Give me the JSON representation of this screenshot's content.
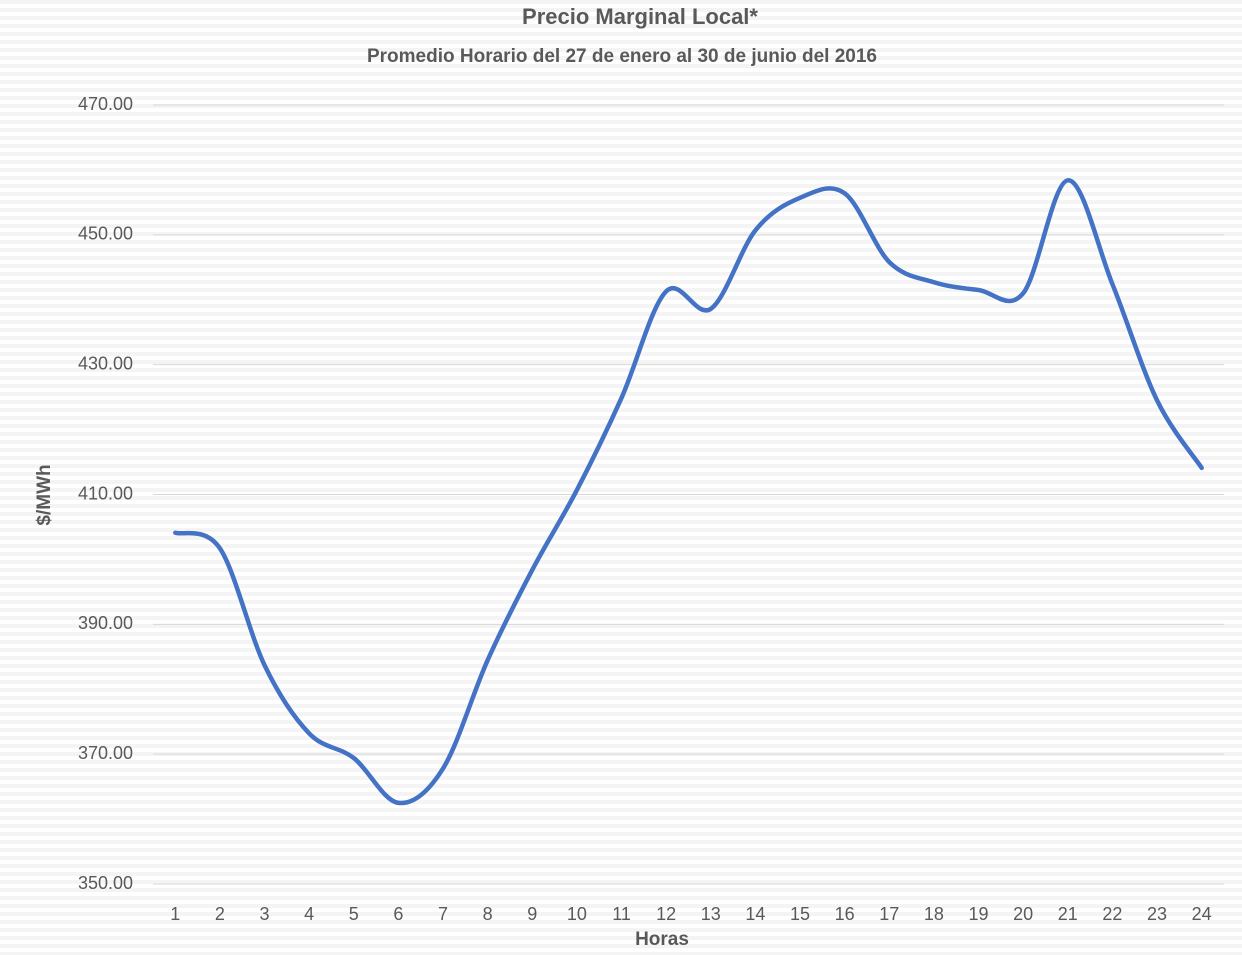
{
  "chart_data": {
    "type": "line",
    "title": "Precio Marginal Local*",
    "subtitle": "Promedio Horario del 27 de enero al 30 de junio del 2016",
    "x_label": "Horas",
    "y_label": "$/MWh",
    "categories": [
      "1",
      "2",
      "3",
      "4",
      "5",
      "6",
      "7",
      "8",
      "9",
      "10",
      "11",
      "12",
      "13",
      "14",
      "15",
      "16",
      "17",
      "18",
      "19",
      "20",
      "21",
      "22",
      "23",
      "24"
    ],
    "series": [
      {
        "name": "Precio Marginal Local",
        "color": "#4472c4",
        "values": [
          404.1,
          401.7,
          383.7,
          373.2,
          369.4,
          362.5,
          367.8,
          384.5,
          398.4,
          410.7,
          424.9,
          441.3,
          438.6,
          450.7,
          455.7,
          456.4,
          445.8,
          442.7,
          441.5,
          441.0,
          458.4,
          442.4,
          424.5,
          414.1
        ]
      }
    ],
    "ylim": [
      350,
      470
    ],
    "yticks": [
      {
        "value": 350,
        "label": "350.00"
      },
      {
        "value": 370,
        "label": "370.00"
      },
      {
        "value": 390,
        "label": "390.00"
      },
      {
        "value": 410,
        "label": "410.00"
      },
      {
        "value": 430,
        "label": "430.00"
      },
      {
        "value": 450,
        "label": "450.00"
      },
      {
        "value": 470,
        "label": "470.00"
      }
    ],
    "grid": true
  }
}
